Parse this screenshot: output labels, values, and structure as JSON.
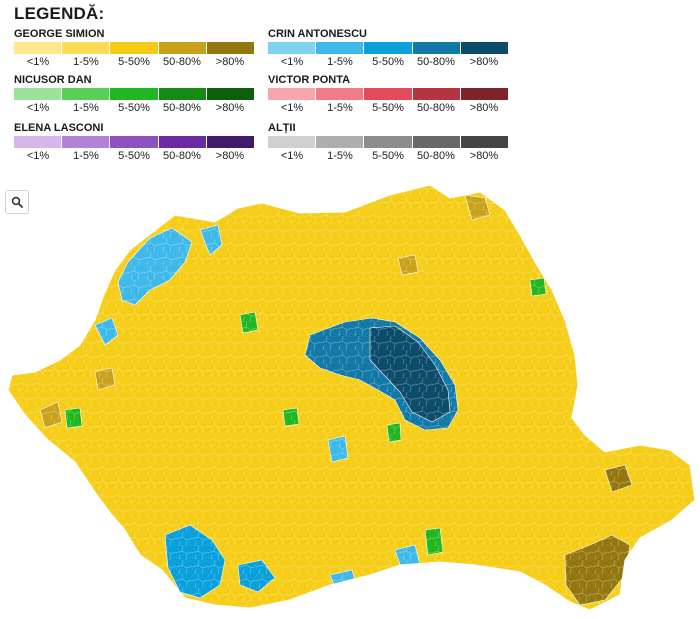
{
  "legend": {
    "title": "LEGENDĂ:",
    "bins": [
      "<1%",
      "1-5%",
      "5-50%",
      "50-80%",
      ">80%"
    ],
    "groups": [
      {
        "name": "GEORGE SIMION",
        "colors": [
          "#fde98a",
          "#fcdc55",
          "#f7cb14",
          "#c9a21b",
          "#94780f"
        ]
      },
      {
        "name": "CRIN ANTONESCU",
        "colors": [
          "#7fd1f0",
          "#3fb9ea",
          "#0aa0dc",
          "#1279a8",
          "#0d4c6b"
        ]
      },
      {
        "name": "NICUSOR DAN",
        "colors": [
          "#9be39a",
          "#58cf57",
          "#20b720",
          "#148a14",
          "#0d5e0d"
        ]
      },
      {
        "name": "VICTOR PONTA",
        "colors": [
          "#f7a6ad",
          "#f07c87",
          "#e34a5a",
          "#b5343f",
          "#7f2229"
        ]
      },
      {
        "name": "ELENA LASCONI",
        "colors": [
          "#d7b7ea",
          "#b382d8",
          "#8e51c2",
          "#6a2aa3",
          "#431a6a"
        ]
      },
      {
        "name": "ALȚII",
        "colors": [
          "#d0d0d0",
          "#aeaeae",
          "#8c8c8c",
          "#686868",
          "#454545"
        ]
      }
    ]
  },
  "controls": {
    "zoom_icon": "search-icon"
  },
  "map": {
    "background_fill": "#f6cd17",
    "regions": [
      {
        "name": "center-antonescu-block",
        "fill": "#1279a8"
      },
      {
        "name": "center-antonescu-core",
        "fill": "#0d4c6b"
      },
      {
        "name": "northwest-antonescu-area",
        "fill": "#3fb9ea"
      },
      {
        "name": "southwest-antonescu-area",
        "fill": "#0aa0dc"
      },
      {
        "name": "south-antonescu-area",
        "fill": "#3fb9ea"
      },
      {
        "name": "southeast-simion-dark-area",
        "fill": "#94780f"
      },
      {
        "name": "northeast-simion-dark-area",
        "fill": "#c9a21b"
      },
      {
        "name": "dan-green-patches",
        "fill": "#20b720"
      }
    ]
  }
}
